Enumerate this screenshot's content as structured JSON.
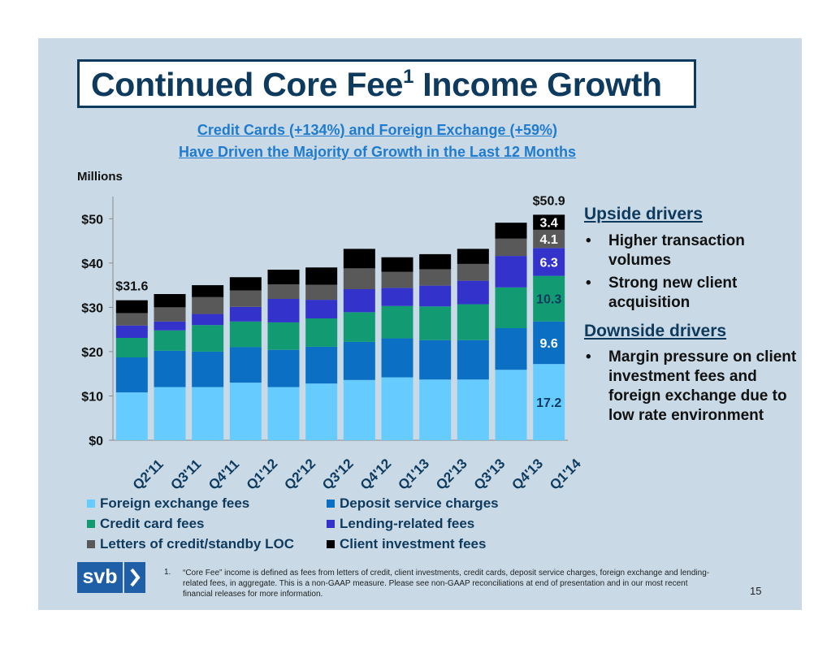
{
  "title": {
    "main": "Continued Core Fee",
    "sup": "1",
    "rest": " Income Growth"
  },
  "subtitle": {
    "line1": "Credit Cards  (+134%) and Foreign Exchange  (+59%)",
    "line2": "Have Driven the Majority of Growth in the Last 12 Months"
  },
  "units_label": "Millions",
  "sidebar": {
    "upside_heading": "Upside drivers",
    "upside_items": [
      "Higher transaction volumes",
      "Strong new client acquisition"
    ],
    "downside_heading": "Downside drivers",
    "downside_items": [
      "Margin pressure on client investment fees and foreign exchange due to low rate environment"
    ]
  },
  "footnote": {
    "number": "1.",
    "text": "“Core Fee” income is defined as fees from letters of credit, client investments, credit cards, deposit service charges, foreign exchange and lending-related fees, in aggregate.   This is a non-GAAP measure. Please see non-GAAP reconciliations at end of presentation and  in our most recent financial releases for more information."
  },
  "logo_text": "svb",
  "page_number": "15",
  "chart_data": {
    "type": "bar",
    "stacked": true,
    "categories": [
      "Q2'11",
      "Q3'11",
      "Q4'11",
      "Q1'12",
      "Q2'12",
      "Q3'12",
      "Q4'12",
      "Q1'13",
      "Q2'13",
      "Q3'13",
      "Q4'13",
      "Q1'14"
    ],
    "ylim": [
      0,
      55
    ],
    "yticks": [
      0,
      10,
      20,
      30,
      40,
      50
    ],
    "ytick_labels": [
      "$0",
      "$10",
      "$20",
      "$30",
      "$40",
      "$50"
    ],
    "grid": false,
    "legend_position": "bottom",
    "series": [
      {
        "name": "Foreign exchange fees",
        "color": "#66ccff",
        "values": [
          10.8,
          12.0,
          12.0,
          13.0,
          12.0,
          12.8,
          13.6,
          14.2,
          13.7,
          13.7,
          15.9,
          17.2
        ]
      },
      {
        "name": "Deposit service charges",
        "color": "#0b70c4",
        "values": [
          7.9,
          8.2,
          8.0,
          8.0,
          8.4,
          8.3,
          8.6,
          8.8,
          8.9,
          8.9,
          9.4,
          9.6
        ]
      },
      {
        "name": "Credit card fees",
        "color": "#129a72",
        "values": [
          4.4,
          4.6,
          6.0,
          5.8,
          6.2,
          6.4,
          6.7,
          7.3,
          7.6,
          8.1,
          9.2,
          10.3
        ]
      },
      {
        "name": "Lending-related fees",
        "color": "#3333cc",
        "values": [
          2.8,
          2.0,
          2.5,
          3.3,
          5.3,
          4.2,
          5.2,
          4.1,
          4.7,
          5.3,
          7.1,
          6.3
        ]
      },
      {
        "name": "Letters of credit/standby LOC",
        "color": "#595959",
        "values": [
          2.8,
          3.2,
          3.8,
          3.7,
          3.3,
          3.4,
          4.7,
          3.6,
          3.7,
          3.8,
          3.9,
          4.1
        ]
      },
      {
        "name": "Client investment fees",
        "color": "#000000",
        "values": [
          2.9,
          3.0,
          2.7,
          3.0,
          3.3,
          3.9,
          4.4,
          3.3,
          3.4,
          3.4,
          3.6,
          3.4
        ]
      }
    ],
    "total_labels": [
      {
        "category": "Q2'11",
        "text": "$31.6"
      },
      {
        "category": "Q1'14",
        "text": "$50.9"
      }
    ],
    "segment_labels": [
      {
        "category": "Q1'14",
        "series": "Foreign exchange fees",
        "text": "17.2",
        "color": "#0e3a5e"
      },
      {
        "category": "Q1'14",
        "series": "Deposit service charges",
        "text": "9.6",
        "color": "#ffffff"
      },
      {
        "category": "Q1'14",
        "series": "Credit card fees",
        "text": "10.3",
        "color": "#0e3a5e"
      },
      {
        "category": "Q1'14",
        "series": "Lending-related fees",
        "text": "6.3",
        "color": "#ffffff"
      },
      {
        "category": "Q1'14",
        "series": "Letters of credit/standby LOC",
        "text": "4.1",
        "color": "#ffffff"
      },
      {
        "category": "Q1'14",
        "series": "Client investment fees",
        "text": "3.4",
        "color": "#ffffff"
      }
    ]
  }
}
